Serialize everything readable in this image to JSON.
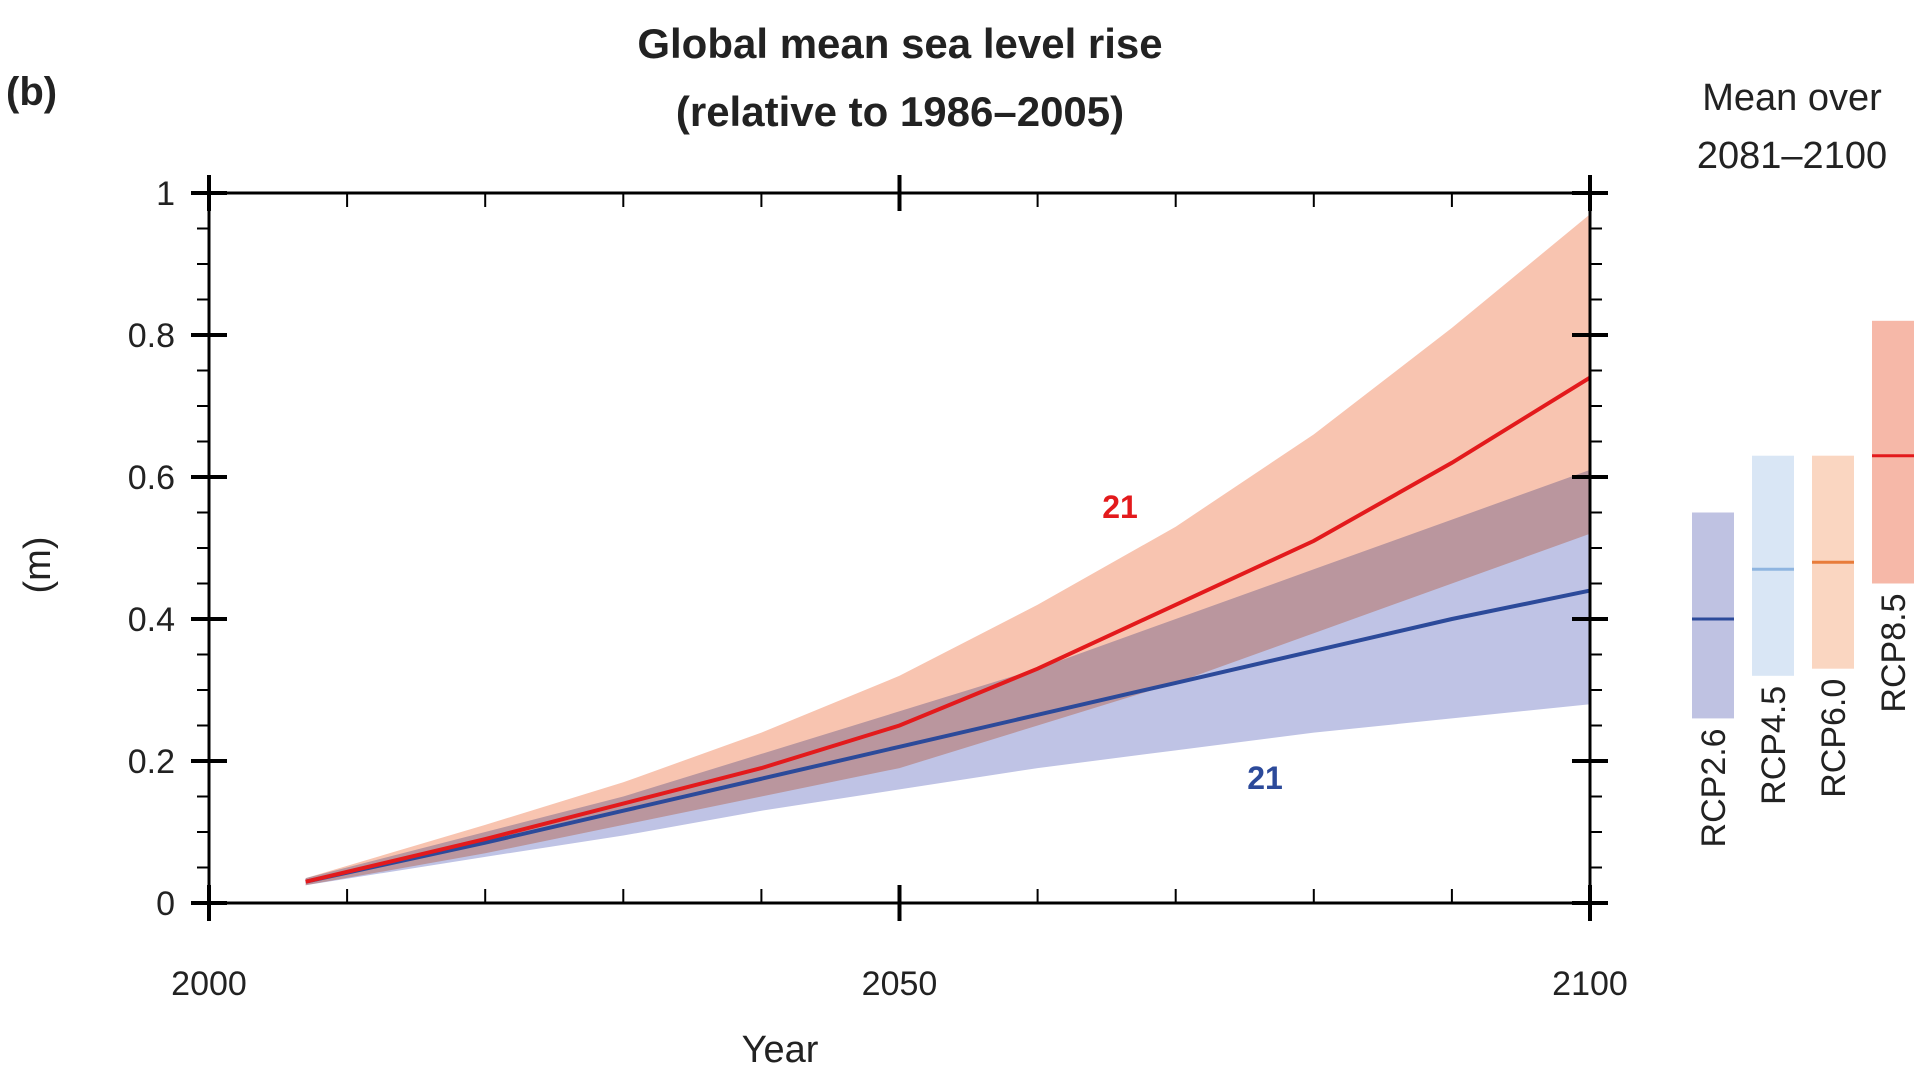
{
  "panel_label": "(b)",
  "chart_data": [
    {
      "type": "band-line",
      "title": [
        "Global mean sea level rise",
        "(relative to 1986–2005)"
      ],
      "xlabel": "Year",
      "ylabel": "(m)",
      "xlim": [
        2000,
        2100
      ],
      "xticks": [
        2000,
        2050,
        2100
      ],
      "xminorticks": [
        2010,
        2020,
        2030,
        2040,
        2060,
        2070,
        2080,
        2090
      ],
      "ylim": [
        0,
        1
      ],
      "yticks": [
        0,
        0.2,
        0.4,
        0.6,
        0.8,
        1
      ],
      "yminorticks": [
        0.05,
        0.1,
        0.15,
        0.25,
        0.3,
        0.35,
        0.45,
        0.5,
        0.55,
        0.65,
        0.7,
        0.75,
        0.85,
        0.9,
        0.95
      ],
      "x": [
        2007,
        2020,
        2030,
        2040,
        2050,
        2060,
        2070,
        2080,
        2090,
        2100
      ],
      "series": [
        {
          "color": "#2c4a9a",
          "band_color": "#bfc3e5",
          "values": [
            0.03,
            0.085,
            0.13,
            0.175,
            0.22,
            0.265,
            0.31,
            0.355,
            0.4,
            0.44
          ],
          "low": [
            0.025,
            0.065,
            0.095,
            0.13,
            0.16,
            0.19,
            0.215,
            0.24,
            0.26,
            0.28
          ],
          "high": [
            0.035,
            0.1,
            0.15,
            0.21,
            0.27,
            0.33,
            0.4,
            0.47,
            0.54,
            0.61
          ]
        },
        {
          "color": "#e31a1c",
          "band_color": "#f8c4b0",
          "values": [
            0.03,
            0.09,
            0.14,
            0.19,
            0.25,
            0.33,
            0.42,
            0.51,
            0.62,
            0.74
          ],
          "low": [
            0.025,
            0.07,
            0.11,
            0.15,
            0.19,
            0.25,
            0.31,
            0.38,
            0.45,
            0.52
          ],
          "high": [
            0.035,
            0.11,
            0.17,
            0.24,
            0.32,
            0.42,
            0.53,
            0.66,
            0.81,
            0.97
          ]
        }
      ],
      "annotations": [
        {
          "text": "21",
          "color": "#e31a1c"
        },
        {
          "text": "21",
          "color": "#2c4a9a"
        }
      ]
    },
    {
      "type": "range",
      "title": [
        "Mean over",
        "2081–2100"
      ],
      "ylim": [
        0,
        1
      ],
      "categories": [
        "RCP2.6",
        "RCP4.5",
        "RCP6.0",
        "RCP8.5"
      ],
      "low": [
        0.26,
        0.32,
        0.33,
        0.45
      ],
      "mean": [
        0.4,
        0.47,
        0.48,
        0.63
      ],
      "high": [
        0.55,
        0.63,
        0.63,
        0.82
      ],
      "colors": [
        "#bfc2e2",
        "#d9e6f5",
        "#fad6c1",
        "#f6b8a8"
      ],
      "line_colors": [
        "#2c4a9a",
        "#8fb5e0",
        "#e87c3a",
        "#e31a1c"
      ]
    }
  ]
}
